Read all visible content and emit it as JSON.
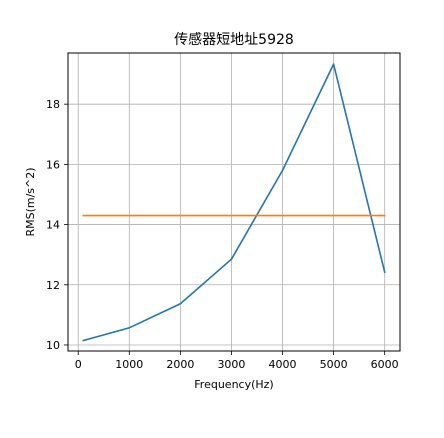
{
  "chart_data": {
    "type": "line",
    "title": "传感器短地址5928",
    "xlabel": "Frequency(Hz)",
    "ylabel": "RMS(m/s^2)",
    "x_ticks": [
      "0",
      "1000",
      "2000",
      "3000",
      "4000",
      "5000",
      "6000"
    ],
    "y_ticks": [
      "10",
      "12",
      "14",
      "16",
      "18"
    ],
    "xlim": [
      -200,
      6300
    ],
    "ylim": [
      9.8,
      19.7
    ],
    "grid": true,
    "series": [
      {
        "color": "#1f77b4",
        "x": [
          100,
          1000,
          2000,
          3000,
          4000,
          5000,
          6000
        ],
        "y": [
          10.15,
          10.57,
          11.37,
          12.85,
          15.8,
          19.33,
          12.42
        ]
      },
      {
        "color": "#ff7f0e",
        "x": [
          100,
          6000
        ],
        "y": [
          14.3,
          14.3
        ]
      }
    ]
  }
}
